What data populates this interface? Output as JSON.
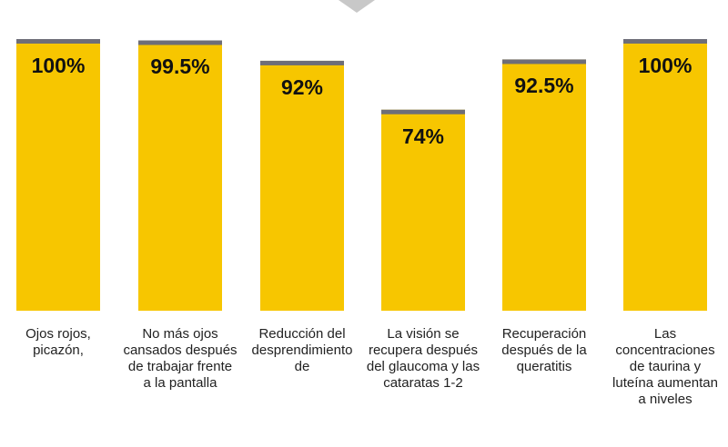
{
  "chart_data": {
    "type": "bar",
    "title": "",
    "xlabel": "",
    "ylabel": "",
    "ylim": [
      0,
      100
    ],
    "categories": [
      "Ojos rojos, picazón,",
      "No más ojos cansados después de trabajar frente a la pantalla",
      "Reducción del desprendimiento de",
      "La visión se recupera después del glaucoma y las cataratas 1-2",
      "Recuperación después de la queratitis",
      "Las concentraciones de taurina y luteína aumentan a niveles"
    ],
    "values": [
      100,
      99.5,
      92,
      74,
      92.5,
      100
    ],
    "value_labels": [
      "100%",
      "99.5%",
      "92%",
      "74%",
      "92.5%",
      "100%"
    ],
    "colors": {
      "bar": "#F7C600",
      "cap": "#6E6E78",
      "indicator": "#C8C8C8"
    }
  }
}
